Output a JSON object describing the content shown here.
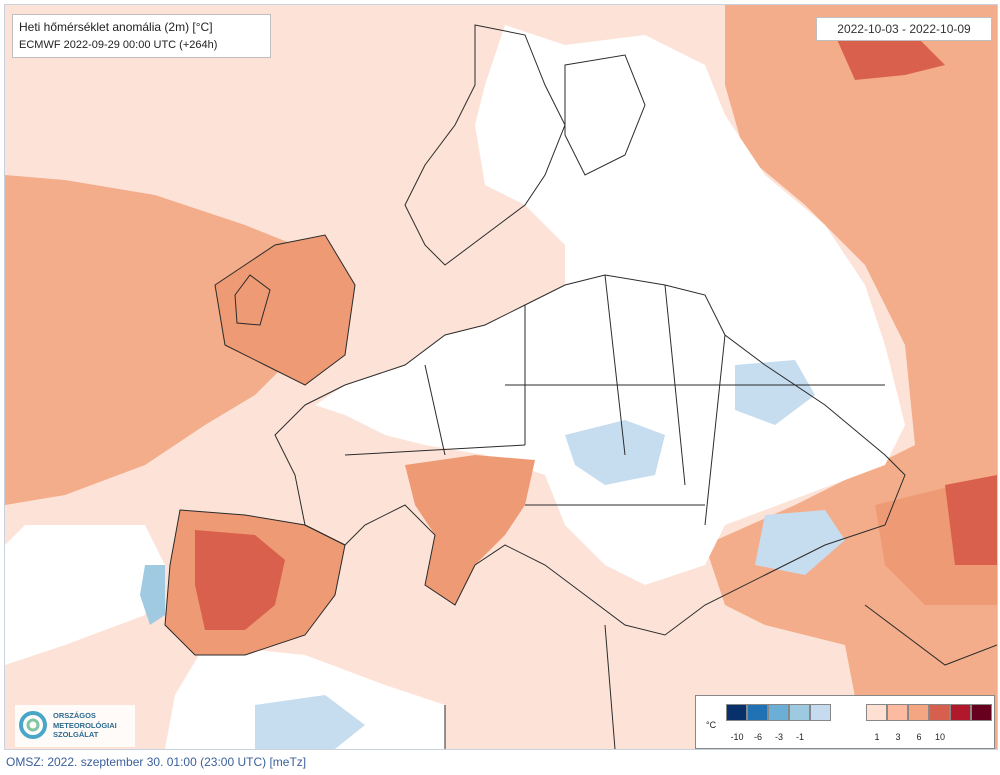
{
  "map": {
    "title_line1": "Heti hőmérséklet anomália (2m) [°C]",
    "title_line2": "ECMWF 2022-09-29 00:00 UTC (+264h)",
    "date_range": "2022-10-03 - 2022-10-09",
    "region": "Europe"
  },
  "logo": {
    "line1": "ORSZÁGOS",
    "line2": "METEOROLÓGIAI",
    "line3": "SZOLGÁLAT"
  },
  "legend": {
    "unit": "°C",
    "ticks": [
      "-10",
      "-6",
      "-3",
      "-1",
      "1",
      "3",
      "6",
      "10"
    ],
    "colors": [
      "#08306b",
      "#2171b5",
      "#6baed6",
      "#9ecae1",
      "#c6dbef",
      "#fde0d2",
      "#fcbba1",
      "#f4a582",
      "#d6604d",
      "#b2182b",
      "#67001f"
    ]
  },
  "footer": "OMSZ: 2022. szeptember 30. 01:00 (23:00  UTC)  [meTz]"
}
